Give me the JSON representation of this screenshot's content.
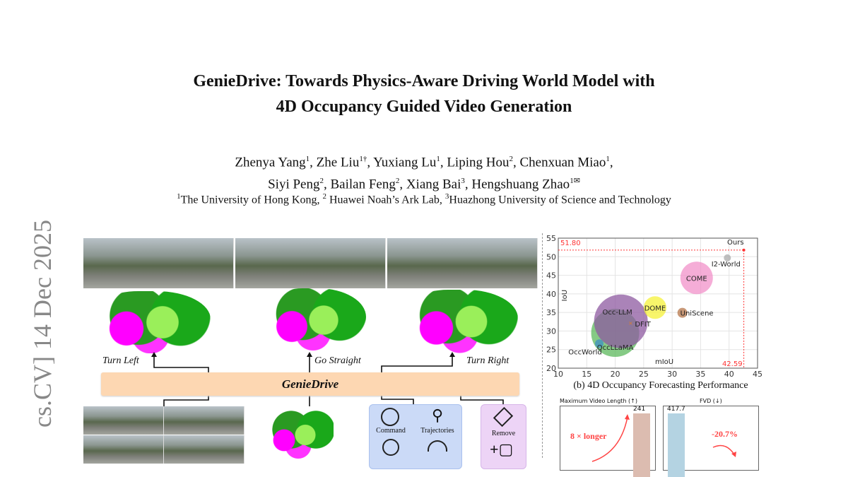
{
  "paper": {
    "title_line1": "GenieDrive: Towards Physics-Aware Driving World Model with",
    "title_line2": "4D Occupancy Guided Video Generation",
    "authors": [
      {
        "name": "Zhenya Yang",
        "sup": "1"
      },
      {
        "name": "Zhe Liu",
        "sup": "1†"
      },
      {
        "name": "Yuxiang Lu",
        "sup": "1"
      },
      {
        "name": "Liping Hou",
        "sup": "2"
      },
      {
        "name": "Chenxuan Miao",
        "sup": "1"
      },
      {
        "name": "Siyi Peng",
        "sup": "2"
      },
      {
        "name": "Bailan Feng",
        "sup": "2"
      },
      {
        "name": "Xiang Bai",
        "sup": "3"
      },
      {
        "name": "Hengshuang Zhao",
        "sup": "1✉"
      }
    ],
    "affiliations": [
      {
        "sup": "1",
        "name": "The University of Hong Kong,"
      },
      {
        "sup": "2",
        "name": " Huawei Noah’s Ark Lab,"
      },
      {
        "sup": "3",
        "name": "Huazhong University of Science and Technology"
      }
    ],
    "arxiv_stamp": "cs.CV]  14 Dec 2025"
  },
  "figure": {
    "directions": [
      "Turn Left",
      "Go Straight",
      "Turn Right"
    ],
    "model_name": "GenieDrive",
    "controls": [
      "Command",
      "Trajectories"
    ],
    "edit": [
      "Remove"
    ],
    "colors": {
      "model_bar": "#fdd7b2",
      "control_box": "#cbdaf7",
      "edit_box": "#edd4f6"
    }
  },
  "chart_data": [
    {
      "type": "scatter",
      "caption": "(b) 4D Occupancy Forecasting Performance",
      "xlabel": "mIoU",
      "ylabel": "IoU",
      "xlim": [
        10,
        45
      ],
      "ylim": [
        20,
        55
      ],
      "xticks": [
        10,
        15,
        20,
        25,
        30,
        35,
        40,
        45
      ],
      "yticks": [
        20,
        25,
        30,
        35,
        40,
        45,
        50,
        55
      ],
      "grid": true,
      "points": [
        {
          "name": "OccLLaMA",
          "x": 20.0,
          "y": 29.5,
          "color": "#5cb85c"
        },
        {
          "name": "Occ-LLM",
          "x": 21.0,
          "y": 32.6,
          "color": "#8e5aa0"
        },
        {
          "name": "OccWorld",
          "x": 17.2,
          "y": 26.6,
          "color": "#3f8fc4"
        },
        {
          "name": "DFIT",
          "x": 22.7,
          "y": 32.2,
          "color": "#e67e22",
          "marker": "x"
        },
        {
          "name": "DOME",
          "x": 27.0,
          "y": 36.3,
          "color": "#f5f23a"
        },
        {
          "name": "UniScene",
          "x": 31.8,
          "y": 34.9,
          "color": "#b5764a"
        },
        {
          "name": "COME",
          "x": 34.3,
          "y": 44.3,
          "color": "#f291c9"
        },
        {
          "name": "I2-World",
          "x": 39.7,
          "y": 49.7,
          "color": "#aaaaaa"
        },
        {
          "name": "Ours",
          "x": 42.59,
          "y": 51.8,
          "color": "#ff3333"
        }
      ],
      "annotations": [
        "51.80",
        "42.59"
      ]
    },
    {
      "type": "bar",
      "title": "Maximum Video Length (↑)",
      "values": [
        241
      ],
      "data_labels": [
        "241"
      ],
      "annotation": "8 × longer",
      "color": "#dcbcb0"
    },
    {
      "type": "bar",
      "title": "FVD (↓)",
      "values": [
        417.7
      ],
      "data_labels": [
        "417.7"
      ],
      "annotation": "-20.7%",
      "color": "#b4d3e2"
    }
  ]
}
